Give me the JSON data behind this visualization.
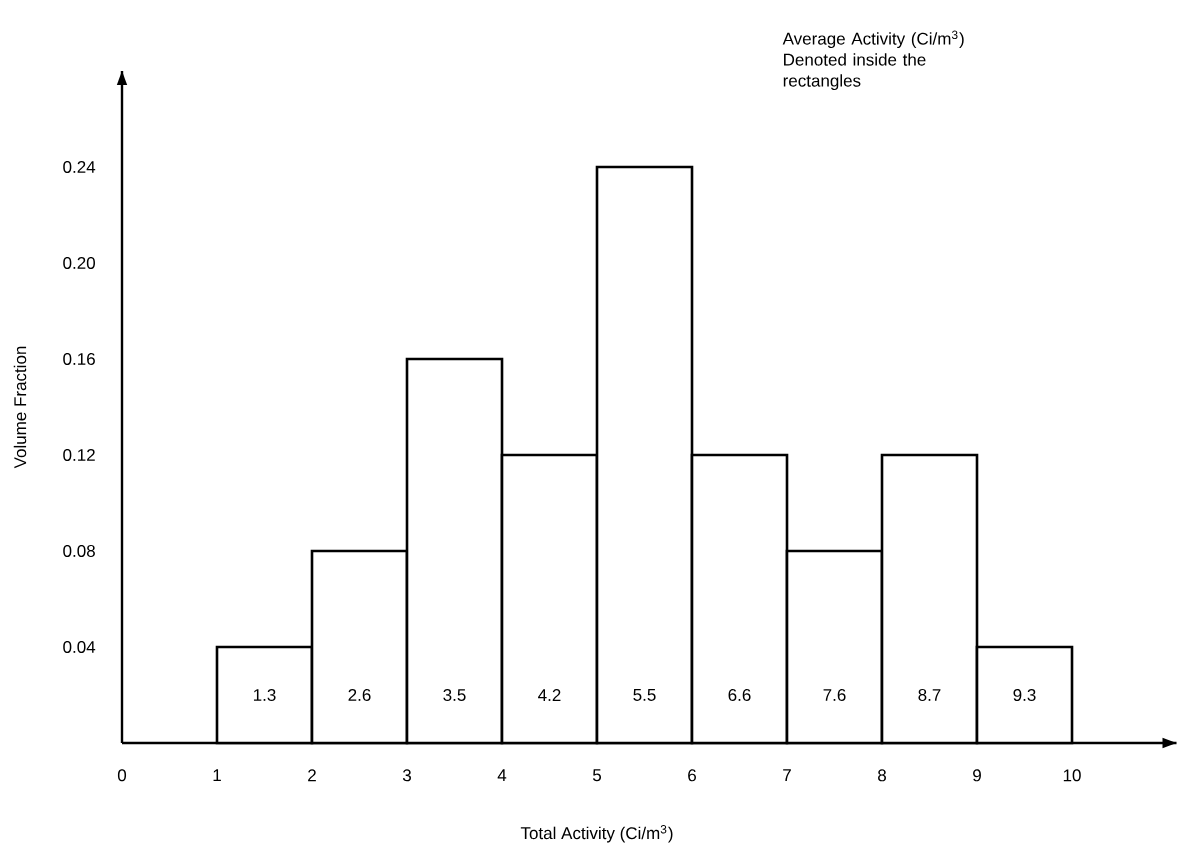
{
  "chart_data": {
    "type": "histogram",
    "xlabel": "Total Activity (Ci/m$^{3}$)",
    "ylabel": "Volume Fraction",
    "bins": [
      1,
      2,
      3,
      4,
      5,
      6,
      7,
      8,
      9,
      10
    ],
    "values": [
      0.04,
      0.08,
      0.16,
      0.12,
      0.24,
      0.12,
      0.08,
      0.12,
      0.04
    ],
    "color": "#000000",
    "xlim": [
      0,
      11.1
    ],
    "ylim": [
      0,
      0.28
    ],
    "xticks": [
      0,
      1,
      2,
      3,
      4,
      5,
      6,
      7,
      8,
      9,
      10
    ],
    "yticks": [
      0.04,
      0.08,
      0.12,
      0.16,
      {
        "value": 0.2,
        "label": "0.20"
      },
      0.24
    ],
    "grid": false,
    "annotations": [
      "Average Activity (Ci/m$^{3}$) Denoted inside the rectangles",
      "1.3",
      "2.6",
      "3.5",
      "4.2",
      "5.5",
      "6.6",
      "7.6",
      "8.7",
      "9.3"
    ]
  }
}
